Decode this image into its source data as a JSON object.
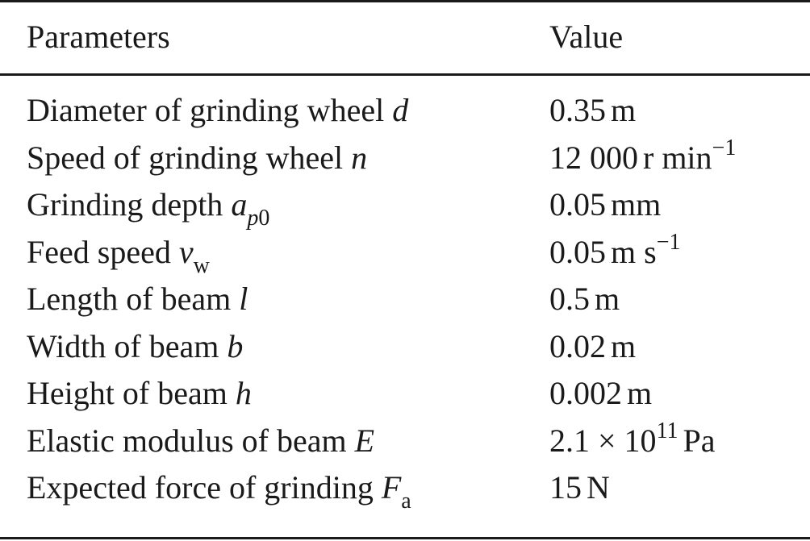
{
  "table": {
    "headers": {
      "parameters": "Parameters",
      "value": "Value"
    },
    "rows": [
      {
        "label": "Diameter of grinding wheel ",
        "symbol": "d",
        "subscript": "",
        "value_num": "0.35",
        "value_unit": "m",
        "value_sup": ""
      },
      {
        "label": "Speed of grinding wheel ",
        "symbol": "n",
        "subscript": "",
        "value_num": "12 000",
        "value_unit": "r min",
        "value_sup": "−1"
      },
      {
        "label": "Grinding depth ",
        "symbol": "a",
        "subscript_italic": "p",
        "subscript_upright": "0",
        "value_num": "0.05",
        "value_unit": "mm",
        "value_sup": ""
      },
      {
        "label": "Feed speed ",
        "symbol": "v",
        "subscript": "w",
        "value_num": "0.05",
        "value_unit": "m s",
        "value_sup": "−1"
      },
      {
        "label": "Length of beam ",
        "symbol": "l",
        "subscript": "",
        "value_num": "0.5",
        "value_unit": "m",
        "value_sup": ""
      },
      {
        "label": "Width of beam ",
        "symbol": "b",
        "subscript": "",
        "value_num": "0.02",
        "value_unit": "m",
        "value_sup": ""
      },
      {
        "label": "Height of beam ",
        "symbol": "h",
        "subscript": "",
        "value_num": "0.002",
        "value_unit": "m",
        "value_sup": ""
      },
      {
        "label": "Elastic modulus of beam ",
        "symbol": "E",
        "subscript": "",
        "value_num": "2.1 × 10",
        "value_unit": "Pa",
        "value_sup": "11"
      },
      {
        "label": "Expected force of grinding ",
        "symbol": "F",
        "subscript": "a",
        "value_num": "15",
        "value_unit": "N",
        "value_sup": ""
      }
    ]
  }
}
